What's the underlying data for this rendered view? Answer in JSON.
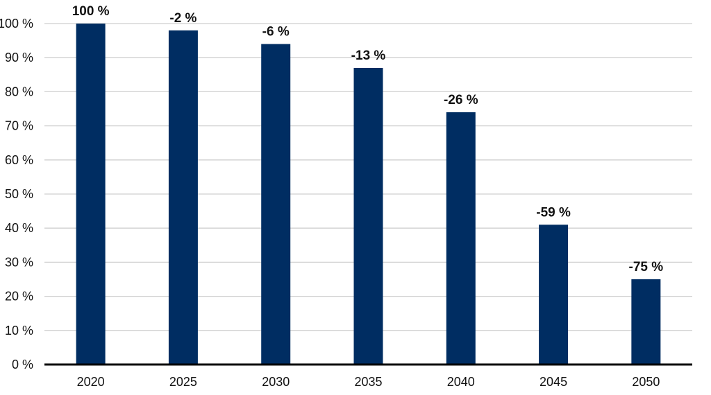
{
  "chart_data": {
    "type": "bar",
    "categories": [
      "2020",
      "2025",
      "2030",
      "2035",
      "2040",
      "2045",
      "2050"
    ],
    "values": [
      100,
      98,
      94,
      87,
      74,
      41,
      25
    ],
    "data_labels": [
      "100 %",
      "-2 %",
      "-6 %",
      "-13 %",
      "-26 %",
      "-59 %",
      "-75 %"
    ],
    "y_ticks": [
      0,
      10,
      20,
      30,
      40,
      50,
      60,
      70,
      80,
      90,
      100
    ],
    "y_tick_labels": [
      "0 %",
      "10 %",
      "20 %",
      "30 %",
      "40 %",
      "50 %",
      "60 %",
      "70 %",
      "80 %",
      "90 %",
      "100 %"
    ],
    "ylim": [
      0,
      100
    ],
    "grid": true,
    "legend": "none",
    "title": "",
    "xlabel": "",
    "ylabel": "",
    "colors": {
      "bar": "#002d62",
      "grid": "#cfcfcf",
      "axis": "#000000",
      "text": "#111111"
    }
  }
}
